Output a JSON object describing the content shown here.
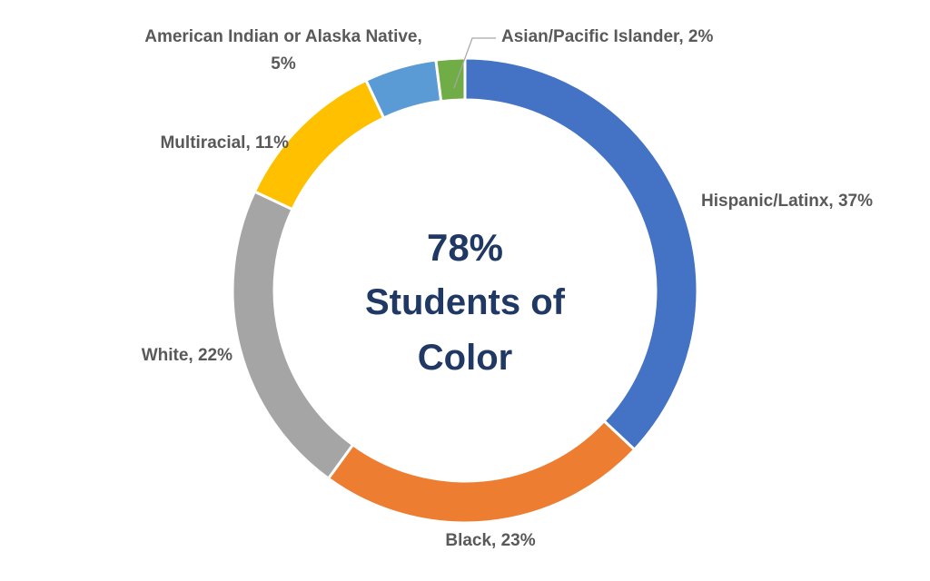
{
  "chart_data": {
    "type": "pie",
    "donut": true,
    "center_text": {
      "line1": "78%",
      "line2": "Students of",
      "line3": "Color"
    },
    "slices": [
      {
        "name": "Hispanic/Latinx",
        "value": 37,
        "label": "Hispanic/Latinx, 37%",
        "color": "#4472c4"
      },
      {
        "name": "Black",
        "value": 23,
        "label": "Black, 23%",
        "color": "#ed7d31"
      },
      {
        "name": "White",
        "value": 22,
        "label": "White, 22%",
        "color": "#a5a5a5"
      },
      {
        "name": "Multiracial",
        "value": 11,
        "label": "Multiracial, 11%",
        "color": "#ffc000"
      },
      {
        "name": "American Indian or Alaska Native",
        "value": 5,
        "label_lines": [
          "American Indian or Alaska Native,",
          "5%"
        ],
        "color": "#5b9bd5"
      },
      {
        "name": "Asian/Pacific Islander",
        "value": 2,
        "label": "Asian/Pacific Islander, 2%",
        "color": "#70ad47"
      }
    ]
  }
}
